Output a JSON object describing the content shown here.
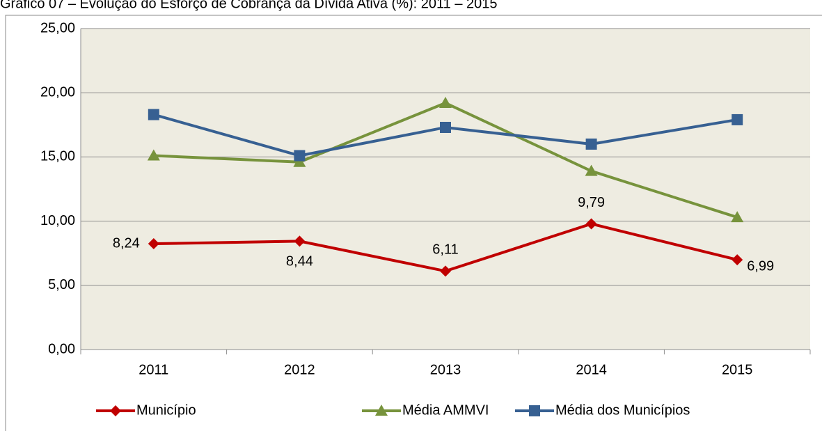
{
  "chart_data": {
    "type": "line",
    "title": "Gráfico 07 – Evolução do Esforço de Cobrança da Dívida Ativa (%): 2011 – 2015",
    "categories": [
      "2011",
      "2012",
      "2013",
      "2014",
      "2015"
    ],
    "series": [
      {
        "name": "Município",
        "color": "#c00000",
        "marker": "diamond",
        "values": [
          8.24,
          8.44,
          6.11,
          9.79,
          6.99
        ],
        "value_labels": [
          "8,24",
          "8,44",
          "6,11",
          "9,79",
          "6,99"
        ]
      },
      {
        "name": "Média AMMVI",
        "color": "#77933c",
        "marker": "triangle",
        "values": [
          15.1,
          14.6,
          19.2,
          13.9,
          10.3
        ]
      },
      {
        "name": "Média dos Municípios",
        "color": "#376092",
        "marker": "square",
        "values": [
          18.3,
          15.1,
          17.3,
          16.0,
          17.9
        ]
      }
    ],
    "ylim": [
      0,
      25
    ],
    "yticks": [
      {
        "value": 0,
        "label": "0,00"
      },
      {
        "value": 5,
        "label": "5,00"
      },
      {
        "value": 10,
        "label": "10,00"
      },
      {
        "value": 15,
        "label": "15,00"
      },
      {
        "value": 20,
        "label": "20,00"
      },
      {
        "value": 25,
        "label": "25,00"
      }
    ],
    "grid": true,
    "legend": "bottom"
  }
}
